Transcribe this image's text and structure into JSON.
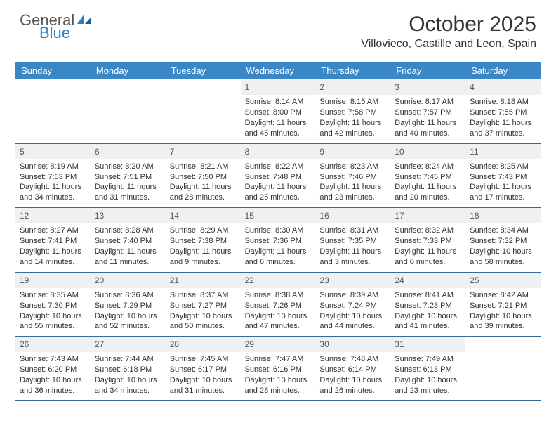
{
  "logo": {
    "line1": "General",
    "line2": "Blue"
  },
  "title": "October 2025",
  "location": "Villovieco, Castille and Leon, Spain",
  "colors": {
    "header_bg": "#3a87c8",
    "header_text": "#ffffff",
    "daynum_bg": "#eef0f1",
    "week_border": "#3a6a9a",
    "logo_gray": "#555555",
    "logo_blue": "#2f7fc1",
    "background": "#ffffff"
  },
  "day_names": [
    "Sunday",
    "Monday",
    "Tuesday",
    "Wednesday",
    "Thursday",
    "Friday",
    "Saturday"
  ],
  "weeks": [
    [
      {
        "blank": true
      },
      {
        "blank": true
      },
      {
        "blank": true
      },
      {
        "n": "1",
        "sr": "8:14 AM",
        "ss": "8:00 PM",
        "dl": "11 hours and 45 minutes."
      },
      {
        "n": "2",
        "sr": "8:15 AM",
        "ss": "7:58 PM",
        "dl": "11 hours and 42 minutes."
      },
      {
        "n": "3",
        "sr": "8:17 AM",
        "ss": "7:57 PM",
        "dl": "11 hours and 40 minutes."
      },
      {
        "n": "4",
        "sr": "8:18 AM",
        "ss": "7:55 PM",
        "dl": "11 hours and 37 minutes."
      }
    ],
    [
      {
        "n": "5",
        "sr": "8:19 AM",
        "ss": "7:53 PM",
        "dl": "11 hours and 34 minutes."
      },
      {
        "n": "6",
        "sr": "8:20 AM",
        "ss": "7:51 PM",
        "dl": "11 hours and 31 minutes."
      },
      {
        "n": "7",
        "sr": "8:21 AM",
        "ss": "7:50 PM",
        "dl": "11 hours and 28 minutes."
      },
      {
        "n": "8",
        "sr": "8:22 AM",
        "ss": "7:48 PM",
        "dl": "11 hours and 25 minutes."
      },
      {
        "n": "9",
        "sr": "8:23 AM",
        "ss": "7:46 PM",
        "dl": "11 hours and 23 minutes."
      },
      {
        "n": "10",
        "sr": "8:24 AM",
        "ss": "7:45 PM",
        "dl": "11 hours and 20 minutes."
      },
      {
        "n": "11",
        "sr": "8:25 AM",
        "ss": "7:43 PM",
        "dl": "11 hours and 17 minutes."
      }
    ],
    [
      {
        "n": "12",
        "sr": "8:27 AM",
        "ss": "7:41 PM",
        "dl": "11 hours and 14 minutes."
      },
      {
        "n": "13",
        "sr": "8:28 AM",
        "ss": "7:40 PM",
        "dl": "11 hours and 11 minutes."
      },
      {
        "n": "14",
        "sr": "8:29 AM",
        "ss": "7:38 PM",
        "dl": "11 hours and 9 minutes."
      },
      {
        "n": "15",
        "sr": "8:30 AM",
        "ss": "7:36 PM",
        "dl": "11 hours and 6 minutes."
      },
      {
        "n": "16",
        "sr": "8:31 AM",
        "ss": "7:35 PM",
        "dl": "11 hours and 3 minutes."
      },
      {
        "n": "17",
        "sr": "8:32 AM",
        "ss": "7:33 PM",
        "dl": "11 hours and 0 minutes."
      },
      {
        "n": "18",
        "sr": "8:34 AM",
        "ss": "7:32 PM",
        "dl": "10 hours and 58 minutes."
      }
    ],
    [
      {
        "n": "19",
        "sr": "8:35 AM",
        "ss": "7:30 PM",
        "dl": "10 hours and 55 minutes."
      },
      {
        "n": "20",
        "sr": "8:36 AM",
        "ss": "7:29 PM",
        "dl": "10 hours and 52 minutes."
      },
      {
        "n": "21",
        "sr": "8:37 AM",
        "ss": "7:27 PM",
        "dl": "10 hours and 50 minutes."
      },
      {
        "n": "22",
        "sr": "8:38 AM",
        "ss": "7:26 PM",
        "dl": "10 hours and 47 minutes."
      },
      {
        "n": "23",
        "sr": "8:39 AM",
        "ss": "7:24 PM",
        "dl": "10 hours and 44 minutes."
      },
      {
        "n": "24",
        "sr": "8:41 AM",
        "ss": "7:23 PM",
        "dl": "10 hours and 41 minutes."
      },
      {
        "n": "25",
        "sr": "8:42 AM",
        "ss": "7:21 PM",
        "dl": "10 hours and 39 minutes."
      }
    ],
    [
      {
        "n": "26",
        "sr": "7:43 AM",
        "ss": "6:20 PM",
        "dl": "10 hours and 36 minutes."
      },
      {
        "n": "27",
        "sr": "7:44 AM",
        "ss": "6:18 PM",
        "dl": "10 hours and 34 minutes."
      },
      {
        "n": "28",
        "sr": "7:45 AM",
        "ss": "6:17 PM",
        "dl": "10 hours and 31 minutes."
      },
      {
        "n": "29",
        "sr": "7:47 AM",
        "ss": "6:16 PM",
        "dl": "10 hours and 28 minutes."
      },
      {
        "n": "30",
        "sr": "7:48 AM",
        "ss": "6:14 PM",
        "dl": "10 hours and 26 minutes."
      },
      {
        "n": "31",
        "sr": "7:49 AM",
        "ss": "6:13 PM",
        "dl": "10 hours and 23 minutes."
      },
      {
        "blank": true
      }
    ]
  ],
  "labels": {
    "sunrise": "Sunrise:",
    "sunset": "Sunset:",
    "daylight": "Daylight:"
  }
}
